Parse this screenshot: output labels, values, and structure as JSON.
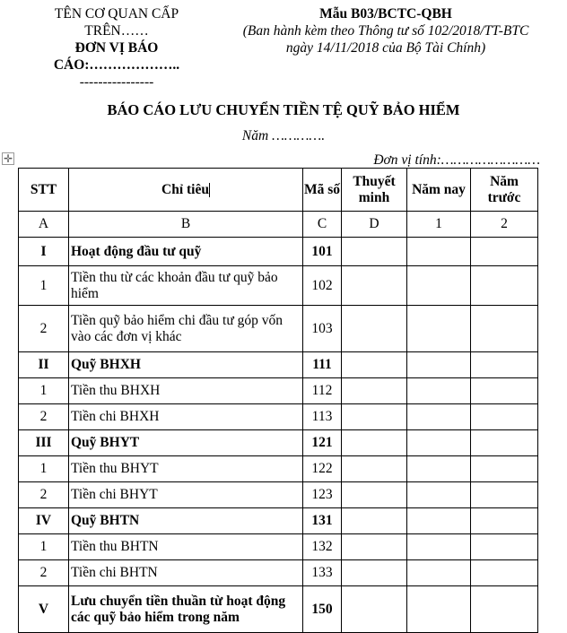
{
  "header_left": {
    "line1": "TÊN CƠ QUAN CẤP",
    "line2": "TRÊN……",
    "line3": "ĐƠN VỊ BÁO",
    "line4": "CÁO:………………..",
    "line5": "----------------"
  },
  "header_right": {
    "form_code": "Mẫu B03/BCTC-QBH",
    "line2": "(Ban hành kèm theo Thông tư số 102/2018/TT-BTC",
    "line3": "ngày 14/11/2018 của Bộ Tài Chính)"
  },
  "title": "BÁO CÁO LƯU CHUYỂN TIỀN TỆ QUỸ BẢO HIỂM",
  "year": "Năm ………….",
  "unit": "Đơn vị tính:……………………",
  "table": {
    "headers": [
      "STT",
      "Chỉ tiêu",
      "Mã số",
      "Thuyết minh",
      "Năm nay",
      "Năm trước"
    ],
    "codes": [
      "A",
      "B",
      "C",
      "D",
      "1",
      "2"
    ],
    "rows": [
      {
        "stt": "I",
        "label": "Hoạt động đầu tư quỹ",
        "code": "101",
        "bold": true
      },
      {
        "stt": "1",
        "label": "Tiền thu từ các khoản đầu tư quỹ bảo hiểm",
        "code": "102",
        "bold": false
      },
      {
        "stt": "2",
        "label": "Tiền quỹ bảo hiểm chi đầu tư góp vốn vào các đơn vị khác",
        "code": "103",
        "bold": false
      },
      {
        "stt": "II",
        "label": "Quỹ BHXH",
        "code": "111",
        "bold": true
      },
      {
        "stt": "1",
        "label": "Tiền thu BHXH",
        "code": "112",
        "bold": false
      },
      {
        "stt": "2",
        "label": "Tiền chi BHXH",
        "code": "113",
        "bold": false
      },
      {
        "stt": "III",
        "label": "Quỹ BHYT",
        "code": "121",
        "bold": true
      },
      {
        "stt": "1",
        "label": "Tiền thu BHYT",
        "code": "122",
        "bold": false
      },
      {
        "stt": "2",
        "label": "Tiền chi BHYT",
        "code": "123",
        "bold": false
      },
      {
        "stt": "IV",
        "label": "Quỹ BHTN",
        "code": "131",
        "bold": true
      },
      {
        "stt": "1",
        "label": "Tiền thu BHTN",
        "code": "132",
        "bold": false
      },
      {
        "stt": "2",
        "label": "Tiền chi BHTN",
        "code": "133",
        "bold": false
      },
      {
        "stt": "V",
        "label": "Lưu chuyển tiền thuần từ hoạt động các quỹ bảo hiểm trong năm",
        "code": "150",
        "bold": true
      }
    ]
  }
}
